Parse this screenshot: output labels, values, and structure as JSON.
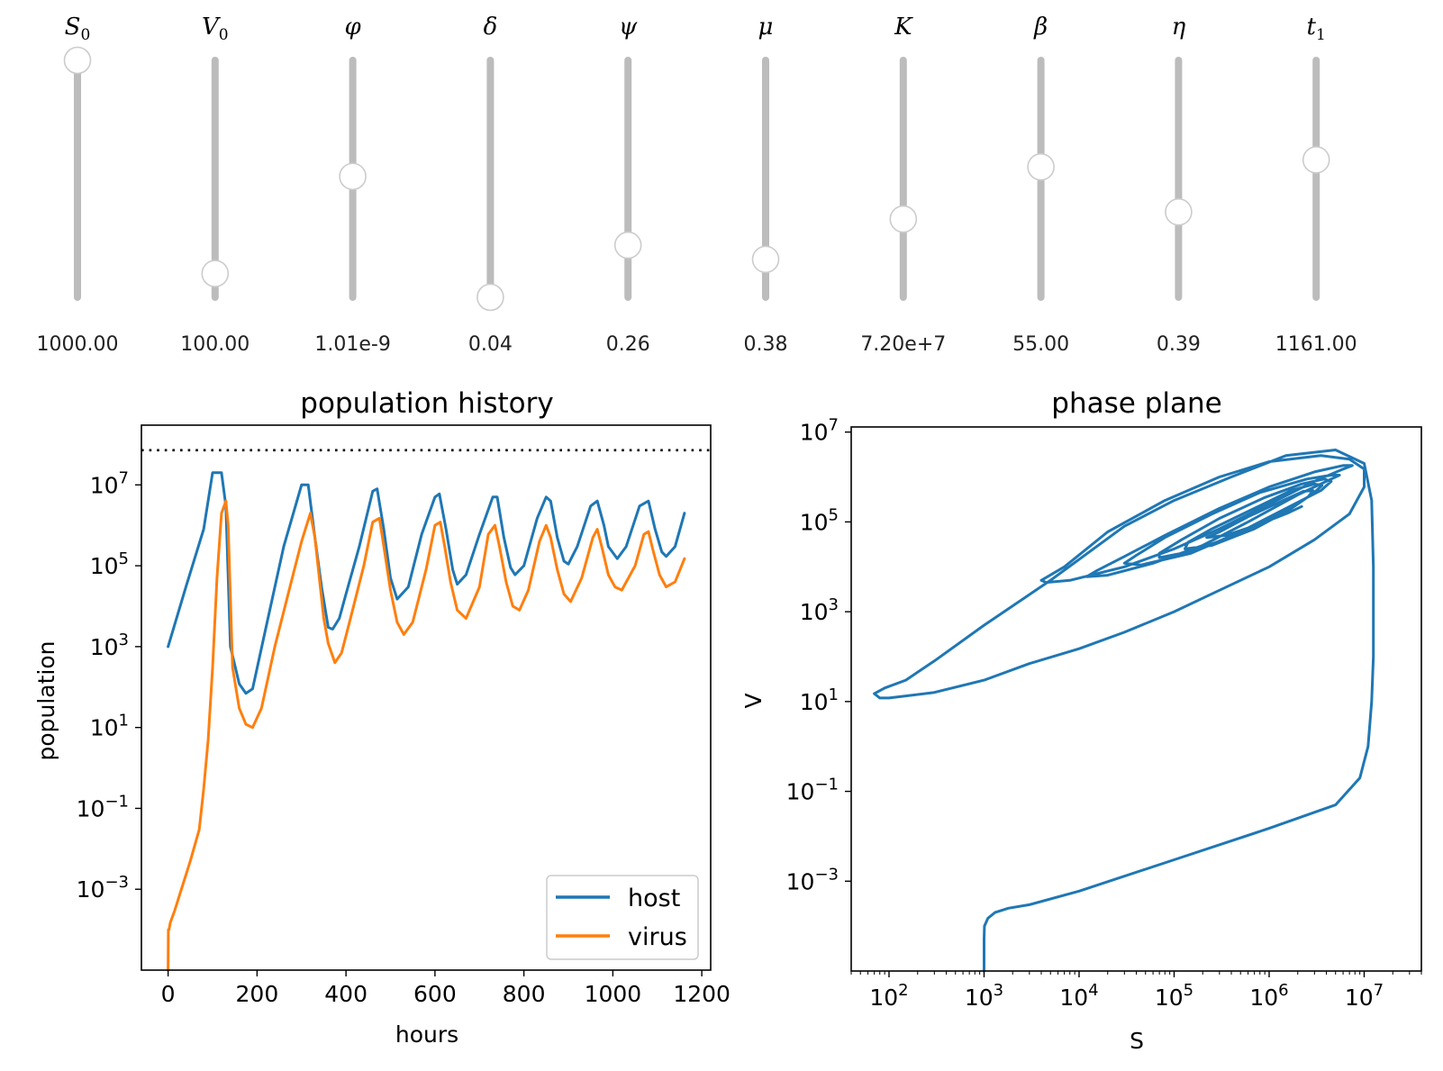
{
  "sliders": [
    {
      "symbol": "S",
      "sub": "0",
      "value_text": "1000.00",
      "level": 1.0
    },
    {
      "symbol": "V",
      "sub": "0",
      "value_text": "100.00",
      "level": 0.1
    },
    {
      "symbol": "φ",
      "sub": "",
      "value_text": "1.01e-9",
      "level": 0.51
    },
    {
      "symbol": "δ",
      "sub": "",
      "value_text": "0.04",
      "level": 0.0
    },
    {
      "symbol": "ψ",
      "sub": "",
      "value_text": "0.26",
      "level": 0.22
    },
    {
      "symbol": "μ",
      "sub": "",
      "value_text": "0.38",
      "level": 0.16
    },
    {
      "symbol": "K",
      "sub": "",
      "value_text": "7.20e+7",
      "level": 0.33
    },
    {
      "symbol": "β",
      "sub": "",
      "value_text": "55.00",
      "level": 0.55
    },
    {
      "symbol": "η",
      "sub": "",
      "value_text": "0.39",
      "level": 0.36
    },
    {
      "symbol": "t",
      "sub": "1",
      "value_text": "1161.00",
      "level": 0.58
    }
  ],
  "chart_data": [
    {
      "type": "line",
      "title": "population history",
      "xlabel": "hours",
      "ylabel": "population",
      "yscale": "log",
      "xlim": [
        -60,
        1220
      ],
      "ylim": [
        1e-05,
        300000000.0
      ],
      "xticks": [
        0,
        200,
        400,
        600,
        800,
        1000,
        1200
      ],
      "yticks": [
        {
          "base": "10",
          "exp": "7",
          "v": 10000000.0
        },
        {
          "base": "10",
          "exp": "5",
          "v": 100000.0
        },
        {
          "base": "10",
          "exp": "3",
          "v": 1000.0
        },
        {
          "base": "10",
          "exp": "1",
          "v": 10.0
        },
        {
          "base": "10",
          "exp": "−1",
          "v": 0.1
        },
        {
          "base": "10",
          "exp": "−3",
          "v": 0.001
        }
      ],
      "hline": {
        "y": 72000000.0,
        "style": "dotted"
      },
      "legend_position": "lower right",
      "series": [
        {
          "name": "host",
          "color": "#1f77b4",
          "x": [
            0,
            40,
            80,
            100,
            120,
            130,
            140,
            160,
            175,
            190,
            220,
            260,
            300,
            315,
            330,
            345,
            360,
            370,
            385,
            400,
            430,
            460,
            470,
            485,
            500,
            515,
            540,
            570,
            600,
            610,
            625,
            640,
            650,
            670,
            700,
            730,
            740,
            755,
            770,
            780,
            800,
            830,
            850,
            860,
            875,
            890,
            900,
            920,
            950,
            965,
            980,
            990,
            1010,
            1030,
            1060,
            1080,
            1095,
            1110,
            1120,
            1140,
            1161
          ],
          "y": [
            1000,
            30000,
            800000,
            20000000.0,
            20000000.0,
            3000000.0,
            1000,
            120,
            70,
            90,
            3000,
            300000,
            10000000.0,
            10000000.0,
            500000,
            30000,
            3000,
            2700,
            5000,
            20000,
            300000,
            7000000.0,
            8000000.0,
            800000,
            50000,
            15000,
            30000,
            600000,
            5000000.0,
            6000000.0,
            800000,
            80000,
            35000,
            60000,
            600000,
            5000000.0,
            5000000.0,
            500000,
            90000,
            60000,
            100000,
            1500000.0,
            5000000.0,
            4000000.0,
            500000,
            130000,
            110000,
            300000,
            3000000.0,
            4000000.0,
            1000000.0,
            300000,
            150000,
            300000,
            3000000.0,
            4000000.0,
            800000,
            220000,
            170000,
            300000,
            2000000.0
          ]
        },
        {
          "name": "virus",
          "color": "#ff7f0e",
          "x": [
            0,
            0.5,
            2,
            5,
            15,
            30,
            50,
            70,
            80,
            90,
            100,
            110,
            120,
            130,
            135,
            145,
            160,
            175,
            190,
            210,
            240,
            270,
            300,
            320,
            330,
            340,
            350,
            360,
            375,
            390,
            410,
            440,
            460,
            475,
            485,
            500,
            515,
            530,
            550,
            580,
            600,
            612,
            622,
            635,
            650,
            670,
            700,
            720,
            735,
            745,
            760,
            775,
            790,
            810,
            835,
            850,
            860,
            875,
            890,
            905,
            930,
            955,
            965,
            975,
            990,
            1005,
            1020,
            1050,
            1070,
            1080,
            1090,
            1105,
            1120,
            1140,
            1161
          ],
          "y": [
            1e-05,
            0.0001,
            0.0001,
            0.00015,
            0.0003,
            0.001,
            0.005,
            0.03,
            0.3,
            5,
            300,
            50000,
            2000000.0,
            4000000.0,
            1000000.0,
            300,
            30,
            12,
            10,
            30,
            1000,
            20000,
            400000,
            2000000.0,
            500000,
            50000,
            5000,
            1200,
            400,
            700,
            5000,
            100000,
            1200000.0,
            1500000.0,
            300000,
            25000,
            4000,
            2000,
            4000,
            80000,
            1000000.0,
            1200000.0,
            300000,
            40000,
            8000,
            5000,
            30000,
            600000,
            1000000.0,
            300000,
            40000,
            10000,
            8000,
            25000,
            400000,
            1000000.0,
            500000,
            80000,
            20000,
            13000,
            50000,
            500000,
            800000,
            300000,
            60000,
            30000,
            25000,
            100000,
            600000,
            700000,
            250000,
            60000,
            30000,
            40000,
            150000
          ]
        }
      ]
    },
    {
      "type": "line",
      "title": "phase plane",
      "xlabel": "S",
      "ylabel": "V",
      "xscale": "log",
      "yscale": "log",
      "xlim": [
        40,
        40000000.0
      ],
      "ylim": [
        1e-05,
        13000000.0
      ],
      "xticks": [
        {
          "base": "10",
          "exp": "2",
          "v": 100
        },
        {
          "base": "10",
          "exp": "3",
          "v": 1000
        },
        {
          "base": "10",
          "exp": "4",
          "v": 10000
        },
        {
          "base": "10",
          "exp": "5",
          "v": 100000
        },
        {
          "base": "10",
          "exp": "6",
          "v": 1000000
        },
        {
          "base": "10",
          "exp": "7",
          "v": 10000000
        }
      ],
      "yticks": [
        {
          "base": "10",
          "exp": "7",
          "v": 10000000.0
        },
        {
          "base": "10",
          "exp": "5",
          "v": 100000.0
        },
        {
          "base": "10",
          "exp": "3",
          "v": 1000.0
        },
        {
          "base": "10",
          "exp": "1",
          "v": 10.0
        },
        {
          "base": "10",
          "exp": "−1",
          "v": 0.1
        },
        {
          "base": "10",
          "exp": "−3",
          "v": 0.001
        }
      ],
      "series": [
        {
          "name": "",
          "color": "#1f77b4",
          "x": [
            1000,
            1000,
            1010,
            1100,
            1300,
            1800,
            3000,
            10000,
            100000,
            1000000,
            5000000,
            9000000,
            11000000.0,
            12000000.0,
            12500000.0,
            12500000.0,
            12000000.0,
            10000000.0,
            5000000.0,
            1500000.0,
            400000,
            100000,
            30000,
            5000,
            1000,
            300,
            150,
            90,
            70,
            80,
            100,
            300,
            1000,
            3000,
            10000,
            30000,
            100000,
            300000,
            1000000,
            3000000,
            7000000,
            10000000.0,
            10000000.0,
            7000000,
            3500000,
            1000000,
            300000,
            80000,
            20000,
            7000,
            4000,
            4500,
            8000,
            30000,
            100000,
            300000,
            1000000,
            3000000,
            6000000,
            7500000,
            6000000,
            3000000,
            1000000,
            300000,
            80000,
            30000,
            15000,
            12000,
            20000,
            60000,
            200000,
            600000,
            2000000,
            4500000,
            5500000,
            4500000,
            2500000,
            800000,
            250000,
            80000,
            40000,
            30000,
            45000,
            150000,
            500000,
            1500000,
            3500000,
            4500000,
            3800000,
            2200000,
            900000,
            300000,
            120000,
            70000,
            70000,
            150000,
            500000,
            1300000,
            2800000,
            3600000,
            3000000,
            1700000,
            700000,
            250000,
            140000,
            130000,
            250000,
            700000,
            1600000,
            2600000,
            2900000,
            2300000,
            1400000,
            600000,
            300000,
            220000,
            350000,
            800000,
            1600000,
            2200000
          ],
          "y": [
            1e-05,
            5e-05,
            0.0001,
            0.00015,
            0.0002,
            0.00025,
            0.0003,
            0.0006,
            0.003,
            0.015,
            0.05,
            0.2,
            1,
            10,
            100,
            10000,
            300000,
            2000000,
            4000000,
            3000000,
            1000000,
            300000,
            80000,
            5000,
            500,
            80,
            30,
            20,
            15,
            12,
            12,
            16,
            30,
            70,
            150,
            350,
            1000,
            3000,
            10000,
            40000,
            150000,
            600000,
            1500000,
            2500000,
            3000000,
            2200000,
            1000000,
            300000,
            60000,
            10000,
            5000,
            4500,
            5000,
            10000,
            25000,
            70000,
            250000,
            800000,
            1500000,
            1800000,
            1800000,
            1300000,
            600000,
            200000,
            50000,
            17000,
            8000,
            6000,
            6500,
            12000,
            30000,
            100000,
            400000,
            900000,
            1100000,
            1100000,
            900000,
            450000,
            150000,
            45000,
            18000,
            12000,
            11000,
            20000,
            60000,
            200000,
            500000,
            800000,
            900000,
            700000,
            350000,
            120000,
            40000,
            20000,
            16000,
            22000,
            55000,
            160000,
            400000,
            650000,
            700000,
            500000,
            200000,
            70000,
            35000,
            25000,
            30000,
            70000,
            180000,
            370000,
            500000,
            480000,
            300000,
            130000,
            60000,
            45000,
            50000,
            90000,
            160000,
            220000
          ]
        }
      ]
    }
  ]
}
